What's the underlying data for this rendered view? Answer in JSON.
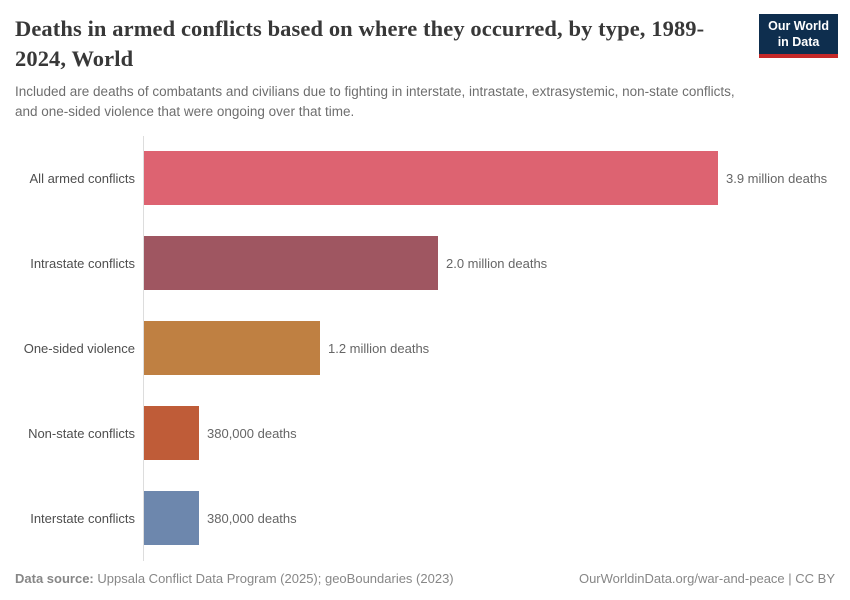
{
  "header": {
    "title": "Deaths in armed conflicts based on where they occurred, by type, 1989-2024, World",
    "subtitle": "Included are deaths of combatants and civilians due to fighting in interstate, intrastate, extrasystemic, non-state conflicts, and one-sided violence that were ongoing over that time.",
    "logo": {
      "line1": "Our World",
      "line2": "in Data",
      "bg_color": "#0e2e4e",
      "accent_color": "#c52828"
    }
  },
  "chart_data": {
    "type": "bar",
    "orientation": "horizontal",
    "title": "Deaths in armed conflicts based on where they occurred, by type, 1989-2024, World",
    "categories": [
      "All armed conflicts",
      "Intrastate conflicts",
      "One-sided violence",
      "Non-state conflicts",
      "Interstate conflicts"
    ],
    "values": [
      3900000,
      2000000,
      1200000,
      380000,
      380000
    ],
    "value_labels": [
      "3.9 million deaths",
      "2.0 million deaths",
      "1.2 million deaths",
      "380,000 deaths",
      "380,000 deaths"
    ],
    "colors": [
      "#dd6371",
      "#9f5661",
      "#bf8042",
      "#bf5c38",
      "#6d87ad"
    ],
    "xlabel": "",
    "ylabel": "",
    "xlim": [
      0,
      3900000
    ],
    "grid": false,
    "legend": false
  },
  "footer": {
    "source_label": "Data source:",
    "source_text": "Uppsala Conflict Data Program (2025); geoBoundaries (2023)",
    "right_text": "OurWorldinData.org/war-and-peace | CC BY"
  }
}
